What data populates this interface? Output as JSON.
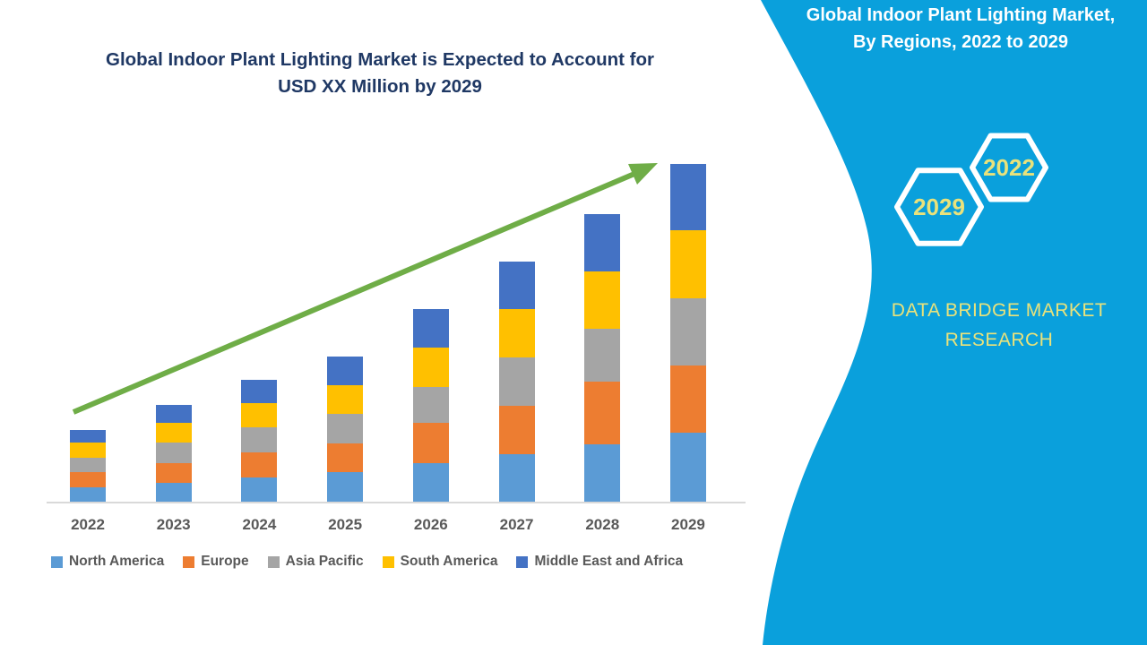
{
  "colors": {
    "panel-blue": "#0AA0DC",
    "arrow-green": "#6FAD47",
    "title-navy": "#1F3864",
    "label-gray": "#595959",
    "axis-gray": "#D9D9D9",
    "accent-yellow": "#E9E27B",
    "hex-outline-white": "#FFFFFF"
  },
  "icons": {
    "trend-arrow": "diagonal-up-right-arrow",
    "hexagon-badge": "hexagon-outline"
  },
  "main": {
    "title_lines": [
      "Global Indoor Plant Lighting Market is Expected to Account for",
      "USD XX Million by 2029"
    ]
  },
  "panel": {
    "title_lines": [
      "Global Indoor Plant Lighting Market,",
      "By Regions, 2022 to 2029"
    ],
    "hexagons": [
      {
        "label": "2029"
      },
      {
        "label": "2022"
      }
    ],
    "brand_lines": [
      "DATA BRIDGE MARKET",
      "RESEARCH"
    ]
  },
  "chart_data": {
    "type": "bar",
    "stacked": true,
    "title": "Global Indoor Plant Lighting Market is Expected to Account for USD XX Million by 2029",
    "xlabel": "",
    "ylabel": "",
    "y_axis_visible": false,
    "value_units": "relative units (no numeric axis shown; market value labeled only as USD XX Million)",
    "ylim": [
      0,
      400
    ],
    "grid": false,
    "legend_position": "bottom",
    "trend_arrow": true,
    "categories": [
      "2022",
      "2023",
      "2024",
      "2025",
      "2026",
      "2027",
      "2028",
      "2029"
    ],
    "series": [
      {
        "name": "North America",
        "color": "#5B9BD5",
        "values": [
          16,
          21,
          27,
          33,
          43,
          53,
          64,
          77
        ]
      },
      {
        "name": "Europe",
        "color": "#ED7D31",
        "values": [
          17,
          22,
          28,
          32,
          45,
          54,
          70,
          75
        ]
      },
      {
        "name": "Asia Pacific",
        "color": "#A5A5A5",
        "values": [
          16,
          23,
          28,
          33,
          40,
          54,
          59,
          75
        ]
      },
      {
        "name": "South America",
        "color": "#FFC000",
        "values": [
          17,
          22,
          27,
          32,
          44,
          54,
          64,
          76
        ]
      },
      {
        "name": "Middle East and Africa",
        "color": "#4472C4",
        "values": [
          14,
          20,
          26,
          32,
          43,
          53,
          64,
          74
        ]
      }
    ]
  }
}
